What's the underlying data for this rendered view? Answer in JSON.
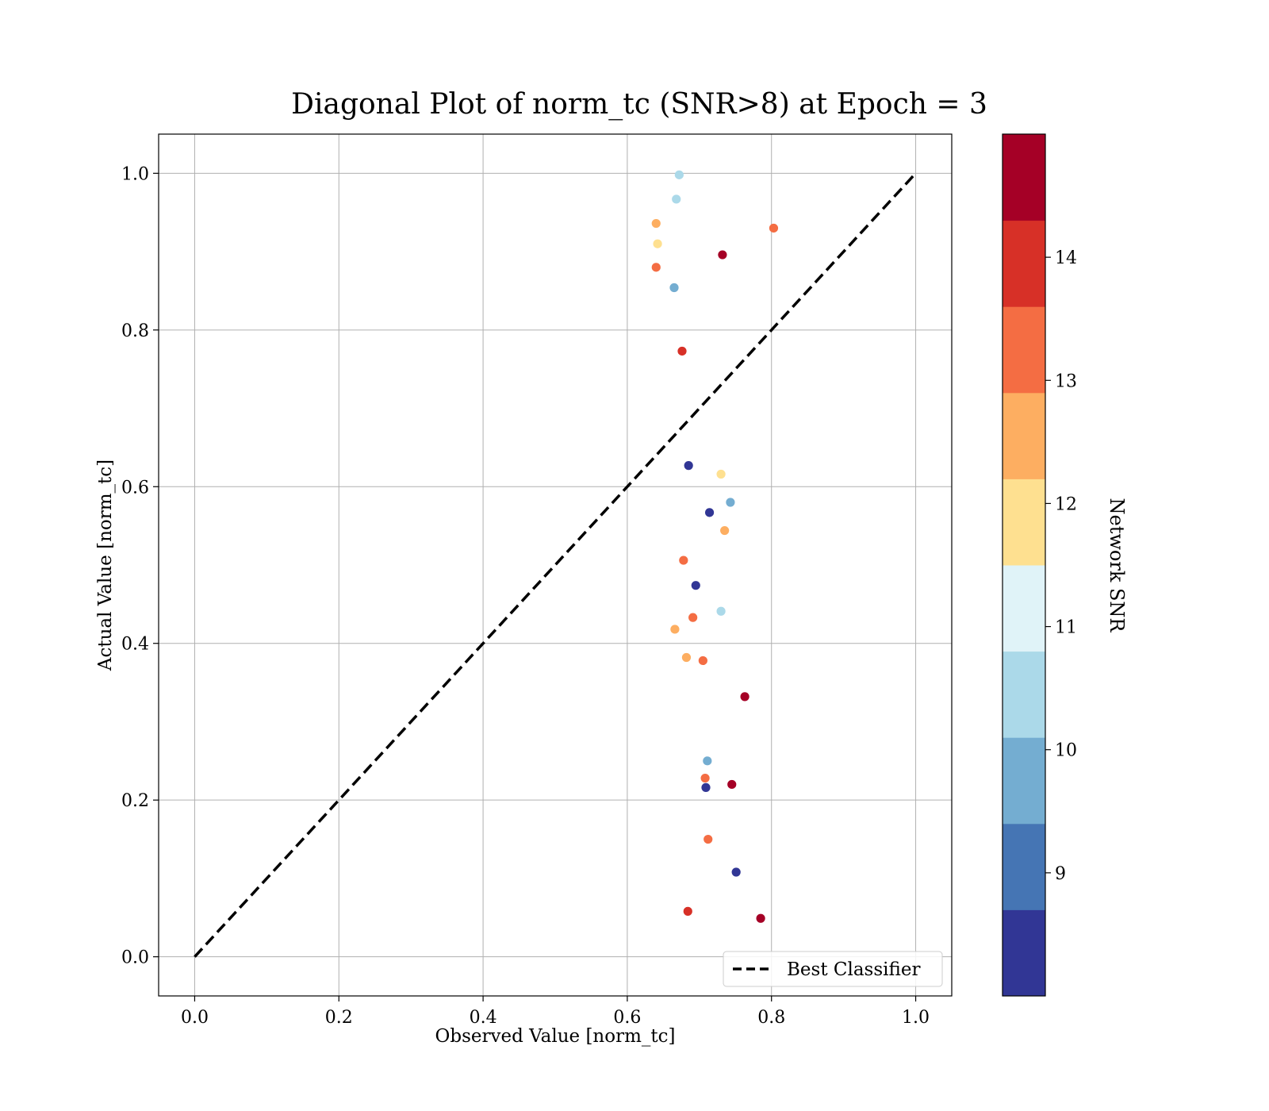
{
  "chart_data": {
    "type": "scatter",
    "title": "Diagonal Plot of norm_tc (SNR>8) at Epoch = 3",
    "xlabel": "Observed Value [norm_tc]",
    "ylabel": "Actual Value [norm_tc]",
    "xlim": [
      -0.05,
      1.05
    ],
    "ylim": [
      -0.05,
      1.05
    ],
    "xticks": [
      0.0,
      0.2,
      0.4,
      0.6,
      0.8,
      1.0
    ],
    "yticks": [
      0.0,
      0.2,
      0.4,
      0.6,
      0.8,
      1.0
    ],
    "x_tick_labels": [
      "0.0",
      "0.2",
      "0.4",
      "0.6",
      "0.8",
      "1.0"
    ],
    "y_tick_labels": [
      "0.0",
      "0.2",
      "0.4",
      "0.6",
      "0.8",
      "1.0"
    ],
    "grid": true,
    "legend": {
      "placement": "lower-right",
      "entries": [
        {
          "label": "Best Classifier",
          "style": "dashed",
          "color": "#000000"
        }
      ]
    },
    "reference_line": {
      "name": "Best Classifier",
      "x": [
        0.0,
        1.0
      ],
      "y": [
        0.0,
        1.0
      ]
    },
    "colorbar": {
      "label": "Network SNR",
      "range": [
        8,
        15
      ],
      "ticks": [
        9,
        10,
        11,
        12,
        13,
        14
      ],
      "tick_labels": [
        "9",
        "10",
        "11",
        "12",
        "13",
        "14"
      ],
      "colors": [
        "#313695",
        "#4575b4",
        "#74add1",
        "#abd9e9",
        "#e0f3f8",
        "#fee090",
        "#fdae61",
        "#f46d43",
        "#d73027",
        "#a50026"
      ]
    },
    "points": [
      {
        "x": 0.732,
        "y": 0.896,
        "snr": 14.8
      },
      {
        "x": 0.803,
        "y": 0.93,
        "snr": 13.2
      },
      {
        "x": 0.763,
        "y": 0.332,
        "snr": 14.8
      },
      {
        "x": 0.785,
        "y": 0.049,
        "snr": 14.8
      },
      {
        "x": 0.751,
        "y": 0.108,
        "snr": 8.2
      },
      {
        "x": 0.745,
        "y": 0.22,
        "snr": 14.5
      },
      {
        "x": 0.743,
        "y": 0.58,
        "snr": 10.1
      },
      {
        "x": 0.735,
        "y": 0.544,
        "snr": 12.7
      },
      {
        "x": 0.73,
        "y": 0.616,
        "snr": 12.0
      },
      {
        "x": 0.73,
        "y": 0.441,
        "snr": 10.3
      },
      {
        "x": 0.714,
        "y": 0.567,
        "snr": 8.2
      },
      {
        "x": 0.712,
        "y": 0.15,
        "snr": 13.2
      },
      {
        "x": 0.711,
        "y": 0.25,
        "snr": 9.8
      },
      {
        "x": 0.709,
        "y": 0.216,
        "snr": 8.3
      },
      {
        "x": 0.708,
        "y": 0.228,
        "snr": 13.2
      },
      {
        "x": 0.705,
        "y": 0.378,
        "snr": 13.6
      },
      {
        "x": 0.695,
        "y": 0.474,
        "snr": 8.2
      },
      {
        "x": 0.691,
        "y": 0.433,
        "snr": 13.3
      },
      {
        "x": 0.685,
        "y": 0.627,
        "snr": 8.2
      },
      {
        "x": 0.682,
        "y": 0.382,
        "snr": 12.8
      },
      {
        "x": 0.678,
        "y": 0.506,
        "snr": 13.3
      },
      {
        "x": 0.676,
        "y": 0.773,
        "snr": 14.2
      },
      {
        "x": 0.668,
        "y": 0.967,
        "snr": 10.4
      },
      {
        "x": 0.672,
        "y": 0.998,
        "snr": 10.5
      },
      {
        "x": 0.665,
        "y": 0.854,
        "snr": 9.8
      },
      {
        "x": 0.666,
        "y": 0.418,
        "snr": 12.8
      },
      {
        "x": 0.684,
        "y": 0.058,
        "snr": 14.0
      },
      {
        "x": 0.64,
        "y": 0.936,
        "snr": 12.8
      },
      {
        "x": 0.642,
        "y": 0.91,
        "snr": 12.2
      },
      {
        "x": 0.64,
        "y": 0.88,
        "snr": 13.3
      }
    ]
  }
}
